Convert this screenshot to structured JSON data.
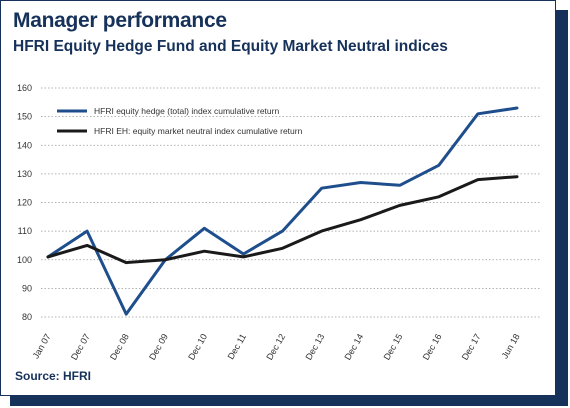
{
  "header": {
    "title": "Manager performance",
    "subtitle": "HFRI Equity Hedge Fund and Equity Market Neutral indices"
  },
  "footer": {
    "source": "Source: HFRI"
  },
  "colors": {
    "brand": "#16315a",
    "series_equity_hedge": "#1f4e8c",
    "series_market_neutral": "#1a1a1a",
    "grid": "#9a9a9a"
  },
  "chart_data": {
    "type": "line",
    "categories": [
      "Jan 07",
      "Dec 07",
      "Dec 08",
      "Dec 09",
      "Dec 10",
      "Dec 11",
      "Dec 12",
      "Dec 13",
      "Dec 14",
      "Dec 15",
      "Dec 16",
      "Dec 17",
      "Jun 18"
    ],
    "series": [
      {
        "name": "HFRI equity hedge (total) index cumulative return",
        "color": "#1f4e8c",
        "values": [
          101,
          110,
          81,
          100,
          111,
          102,
          110,
          125,
          127,
          126,
          133,
          151,
          153
        ]
      },
      {
        "name": "HFRI EH: equity market neutral index cumulative return",
        "color": "#1a1a1a",
        "values": [
          101,
          105,
          99,
          100,
          103,
          101,
          104,
          110,
          114,
          119,
          122,
          128,
          129
        ]
      }
    ],
    "ylim": [
      80,
      160
    ],
    "yticks": [
      80,
      90,
      100,
      110,
      120,
      130,
      140,
      150,
      160
    ],
    "grid": "horizontal-dotted",
    "legend": "top-left",
    "xlabel": "",
    "ylabel": ""
  }
}
